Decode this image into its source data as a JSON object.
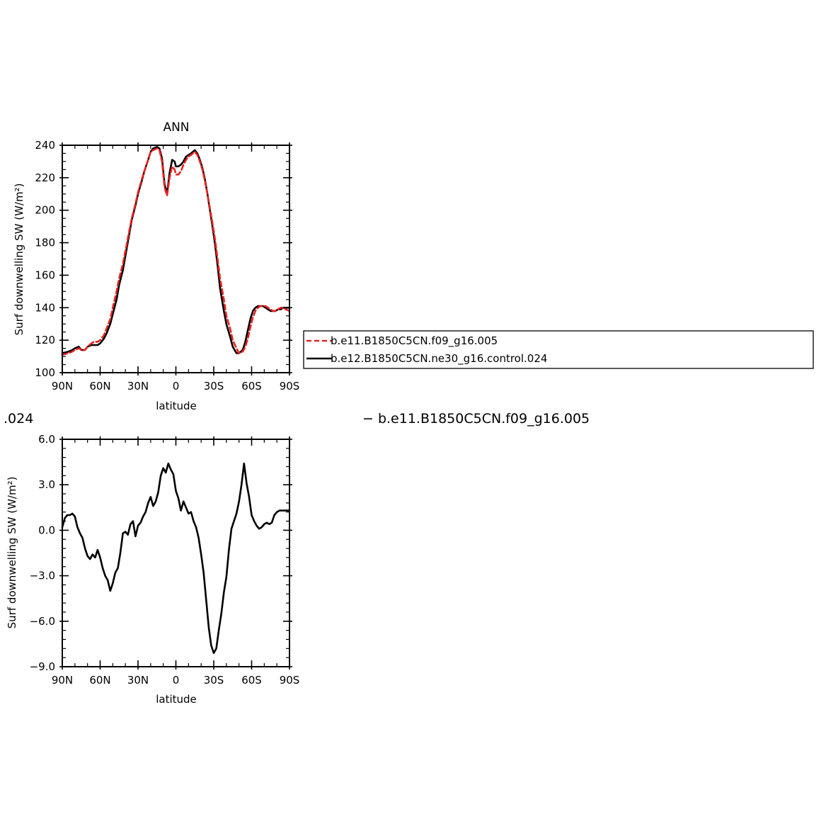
{
  "chart_data": [
    {
      "type": "line",
      "title": "ANN",
      "xlabel": "latitude",
      "ylabel": "Surf downwelling SW (W/m²)",
      "xlim": [
        90,
        -90
      ],
      "ylim": [
        100,
        240
      ],
      "x_ticks": [
        90,
        60,
        30,
        0,
        -30,
        -60,
        -90
      ],
      "x_tick_labels": [
        "90N",
        "60N",
        "30N",
        "0",
        "30S",
        "60S",
        "90S"
      ],
      "y_ticks": [
        100,
        120,
        140,
        160,
        180,
        200,
        220,
        240
      ],
      "y_tick_labels": [
        "100",
        "120",
        "140",
        "160",
        "180",
        "200",
        "220",
        "240"
      ],
      "legend": {
        "placement": "right",
        "entries": [
          "b.e11.B1850C5CN.f09_g16.005",
          "b.e12.B1850C5CN.ne30_g16.control.024"
        ]
      },
      "series": [
        {
          "name": "b.e11.B1850C5CN.f09_g16.005",
          "color": "#e8221f",
          "dash": "dashed",
          "x": [
            90,
            85,
            82,
            80,
            77,
            75,
            72,
            70,
            67,
            65,
            62,
            60,
            57,
            55,
            52,
            50,
            47,
            45,
            42,
            40,
            37,
            35,
            32,
            30,
            27,
            25,
            22,
            20,
            18,
            15,
            13,
            11,
            9,
            7,
            5,
            3,
            1,
            0,
            -2,
            -4,
            -6,
            -8,
            -10,
            -12,
            -15,
            -17,
            -19,
            -21,
            -23,
            -25,
            -27,
            -29,
            -31,
            -33,
            -35,
            -38,
            -40,
            -43,
            -45,
            -48,
            -50,
            -53,
            -55,
            -57,
            -59,
            -61,
            -63,
            -65,
            -67,
            -69,
            -71,
            -73,
            -75,
            -77,
            -79,
            -81,
            -83,
            -85,
            -87,
            -90
          ],
          "y": [
            111,
            112,
            113,
            114,
            115,
            114,
            114,
            116,
            118,
            119,
            119,
            120,
            123,
            127,
            133,
            140,
            150,
            158,
            167,
            175,
            187,
            195,
            204,
            211,
            219,
            224,
            231,
            236,
            237,
            238,
            237,
            230,
            214,
            209,
            220,
            227,
            225,
            222,
            222,
            224,
            228,
            231,
            233,
            234,
            236,
            234,
            230,
            225,
            218,
            210,
            201,
            192,
            182,
            170,
            158,
            145,
            135,
            127,
            120,
            115,
            112,
            113,
            116,
            121,
            128,
            134,
            138,
            140,
            141,
            141,
            141,
            140,
            139,
            138,
            138,
            139,
            140,
            140,
            139,
            138
          ]
        },
        {
          "name": "b.e12.B1850C5CN.ne30_g16.control.024",
          "color": "#000000",
          "dash": "solid",
          "x": [
            90,
            85,
            82,
            80,
            77,
            75,
            72,
            70,
            67,
            65,
            62,
            60,
            57,
            55,
            52,
            50,
            47,
            45,
            42,
            40,
            37,
            35,
            32,
            30,
            27,
            25,
            22,
            20,
            18,
            15,
            13,
            11,
            9,
            7,
            5,
            3,
            1,
            0,
            -2,
            -4,
            -6,
            -8,
            -10,
            -12,
            -15,
            -17,
            -19,
            -21,
            -23,
            -25,
            -27,
            -29,
            -31,
            -33,
            -35,
            -38,
            -40,
            -43,
            -45,
            -48,
            -50,
            -53,
            -55,
            -57,
            -59,
            -61,
            -63,
            -65,
            -67,
            -69,
            -71,
            -73,
            -75,
            -77,
            -79,
            -81,
            -83,
            -85,
            -87,
            -90
          ],
          "y": [
            112,
            113,
            114,
            115,
            116,
            114,
            114,
            116,
            117,
            117,
            117,
            118,
            121,
            124,
            130,
            136,
            145,
            154,
            163,
            172,
            185,
            194,
            203,
            210,
            218,
            224,
            231,
            236,
            238,
            239,
            238,
            232,
            216,
            210,
            223,
            231,
            230,
            227,
            227,
            228,
            230,
            233,
            234,
            235,
            237,
            235,
            231,
            226,
            219,
            210,
            200,
            190,
            179,
            166,
            152,
            138,
            130,
            122,
            116,
            112,
            112,
            114,
            119,
            126,
            133,
            138,
            140,
            141,
            141,
            141,
            140,
            139,
            138,
            138,
            138,
            139,
            139,
            140,
            140,
            140
          ]
        }
      ]
    },
    {
      "type": "line",
      "title": "",
      "xlabel": "latitude",
      "ylabel": "Surf downwelling SW (W/m²)",
      "xlim": [
        90,
        -90
      ],
      "ylim": [
        -9,
        6
      ],
      "x_ticks": [
        90,
        60,
        30,
        0,
        -30,
        -60,
        -90
      ],
      "x_tick_labels": [
        "90N",
        "60N",
        "30N",
        "0",
        "30S",
        "60S",
        "90S"
      ],
      "y_ticks": [
        -9,
        -6,
        -3,
        0,
        3,
        6
      ],
      "y_tick_labels": [
        "−9.0",
        "−6.0",
        "−3.0",
        "0.0",
        "3.0",
        "6.0"
      ],
      "series": [
        {
          "color": "#000000",
          "dash": "solid",
          "x": [
            90,
            88,
            86,
            84,
            82,
            80,
            78,
            76,
            74,
            72,
            70,
            68,
            66,
            64,
            62,
            60,
            58,
            56,
            54,
            52,
            50,
            48,
            46,
            44,
            42,
            40,
            38,
            36,
            34,
            32,
            30,
            28,
            26,
            24,
            22,
            20,
            18,
            16,
            14,
            12,
            10,
            8,
            6,
            4,
            2,
            0,
            -2,
            -4,
            -6,
            -8,
            -10,
            -12,
            -14,
            -16,
            -18,
            -20,
            -22,
            -24,
            -26,
            -28,
            -30,
            -32,
            -34,
            -36,
            -38,
            -40,
            -42,
            -44,
            -46,
            -48,
            -50,
            -52,
            -54,
            -56,
            -58,
            -60,
            -62,
            -64,
            -66,
            -68,
            -70,
            -72,
            -74,
            -76,
            -78,
            -80,
            -82,
            -84,
            -86,
            -88,
            -90
          ],
          "y": [
            0.2,
            0.8,
            1.0,
            1.0,
            1.1,
            0.9,
            0.2,
            -0.2,
            -0.5,
            -1.2,
            -1.7,
            -1.9,
            -1.6,
            -1.8,
            -1.3,
            -1.8,
            -2.5,
            -3.0,
            -3.3,
            -4.0,
            -3.5,
            -2.8,
            -2.5,
            -1.5,
            -0.2,
            -0.1,
            -0.3,
            0.4,
            0.6,
            -0.4,
            0.3,
            0.5,
            0.9,
            1.2,
            1.8,
            2.2,
            1.6,
            1.9,
            2.5,
            3.6,
            4.1,
            3.8,
            4.4,
            4.0,
            3.7,
            2.6,
            2.1,
            1.3,
            1.9,
            1.5,
            1.1,
            1.2,
            0.6,
            0.2,
            -0.5,
            -1.6,
            -2.8,
            -4.6,
            -6.4,
            -7.6,
            -8.1,
            -7.8,
            -6.6,
            -5.5,
            -4.1,
            -3.1,
            -1.3,
            0.1,
            0.6,
            1.1,
            1.9,
            3.0,
            4.4,
            3.1,
            2.2,
            1.0,
            0.6,
            0.3,
            0.1,
            0.2,
            0.4,
            0.5,
            0.4,
            0.5,
            1.0,
            1.2,
            1.3,
            1.3,
            1.3,
            1.3,
            1.3
          ]
        }
      ]
    }
  ],
  "overflow_texts": {
    "left": ".024",
    "right": "− b.e11.B1850C5CN.f09_g16.005"
  }
}
